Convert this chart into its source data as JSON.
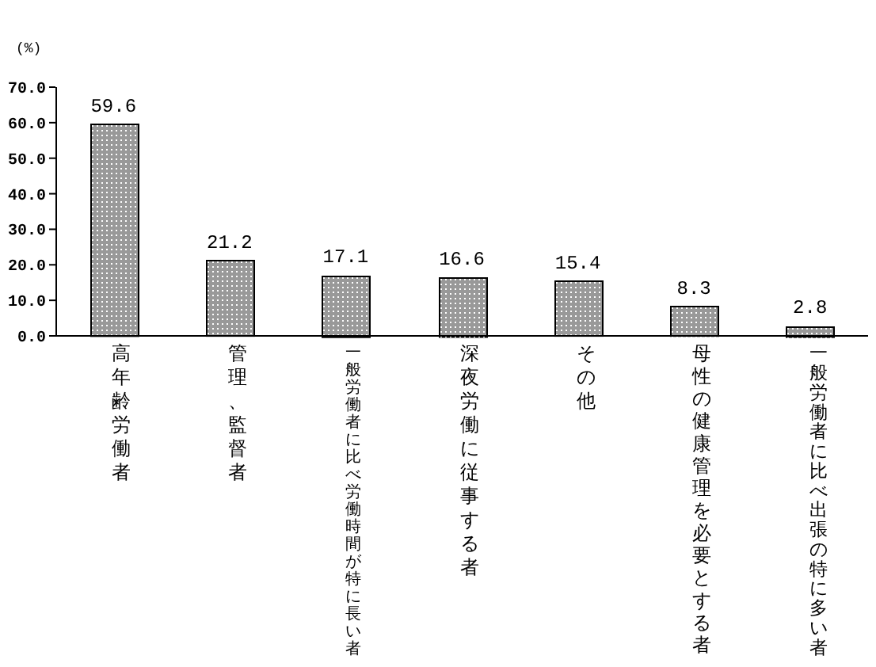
{
  "chart_data": {
    "type": "bar",
    "ylabel": "(%)",
    "categories": [
      "高年齢労働者",
      "管理、監督者",
      "一般労働者に比べ労働時間が特に長い者",
      "深夜労働に従事する者",
      "その他",
      "母性の健康管理を必要とする者",
      "一般労働者に比べ出張の特に多い者"
    ],
    "values": [
      59.6,
      21.2,
      17.1,
      16.6,
      15.4,
      8.3,
      2.8
    ],
    "color": "#999999",
    "ylim": [
      0,
      70
    ],
    "yticks": [
      {
        "value": 0,
        "label": "0.0"
      },
      {
        "value": 10,
        "label": "10.0"
      },
      {
        "value": 20,
        "label": "20.0"
      },
      {
        "value": 30,
        "label": "30.0"
      },
      {
        "value": 40,
        "label": "40.0"
      },
      {
        "value": 50,
        "label": "50.0"
      },
      {
        "value": 60,
        "label": "60.0"
      },
      {
        "value": 70,
        "label": "70.0"
      }
    ],
    "data_labels": true
  }
}
